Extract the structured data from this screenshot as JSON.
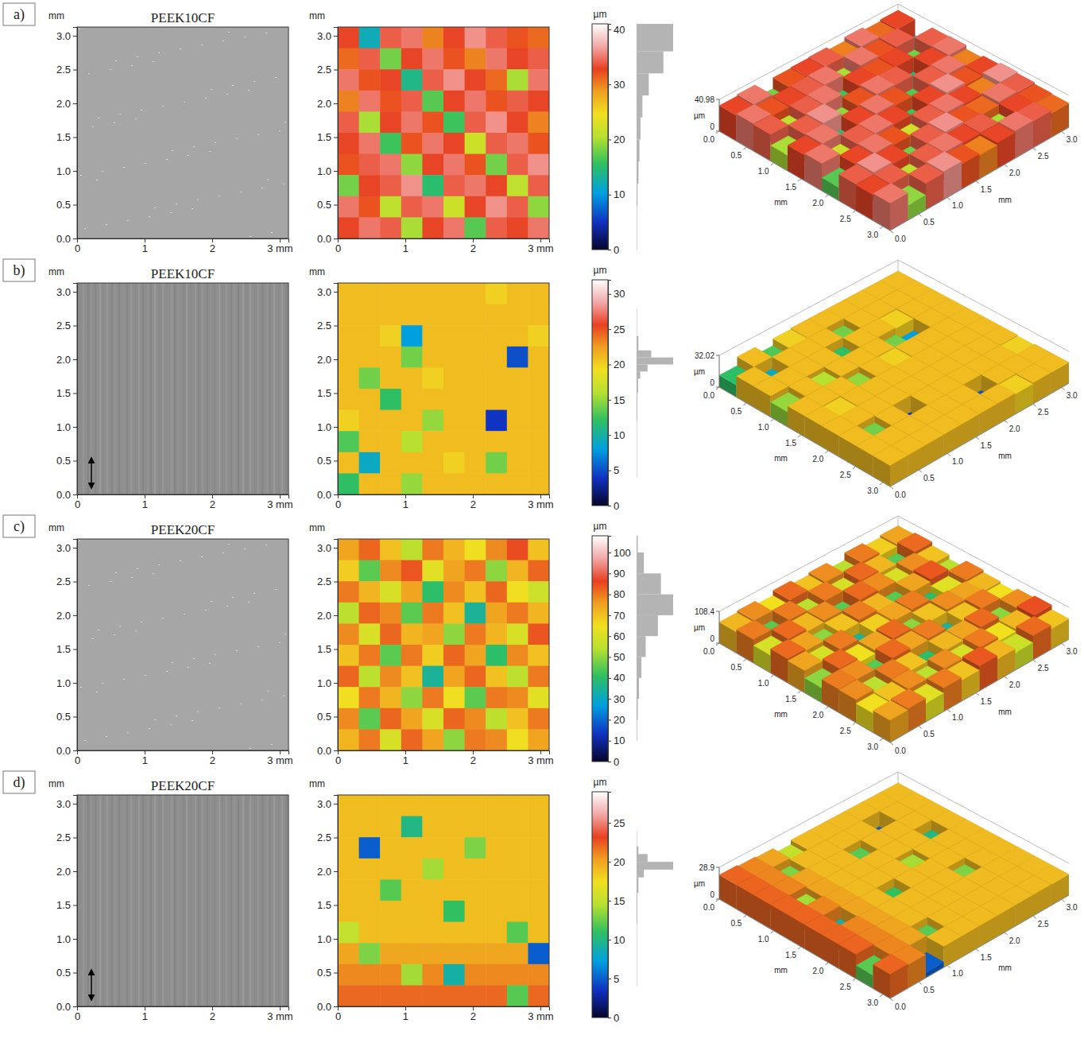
{
  "chart_data": [
    {
      "type": "heatmap",
      "label": "a)",
      "title": "PEEK10CF",
      "ylabel": "mm",
      "xlim": [
        0,
        3.13
      ],
      "ylim": [
        0,
        3.13
      ],
      "xticks": [
        0,
        1,
        2,
        {
          "value": 3,
          "label": "3 mm"
        }
      ],
      "yticks": [
        {
          "value": 0,
          "label": "0.0"
        },
        0.5,
        {
          "value": 1,
          "label": "1.0"
        },
        1.5,
        {
          "value": 2,
          "label": "2.0"
        },
        2.5,
        {
          "value": 3,
          "label": "3.0"
        }
      ],
      "photo": {
        "line_style": "none",
        "marker": "none"
      },
      "cells": [
        [
          33,
          12,
          34,
          35,
          30,
          33,
          36,
          34,
          32,
          31
        ],
        [
          31,
          34,
          18,
          33,
          35,
          32,
          30,
          35,
          33,
          34
        ],
        [
          35,
          32,
          33,
          14,
          34,
          36,
          33,
          31,
          20,
          35
        ],
        [
          30,
          35,
          32,
          34,
          17,
          33,
          35,
          32,
          34,
          33
        ],
        [
          34,
          20,
          33,
          35,
          32,
          16,
          34,
          36,
          33,
          30
        ],
        [
          33,
          35,
          16,
          32,
          35,
          33,
          22,
          34,
          35,
          32
        ],
        [
          32,
          34,
          35,
          19,
          33,
          35,
          32,
          18,
          34,
          36
        ],
        [
          18,
          33,
          34,
          36,
          15,
          34,
          35,
          33,
          21,
          34
        ],
        [
          35,
          32,
          21,
          34,
          35,
          22,
          33,
          36,
          34,
          19
        ],
        [
          33,
          35,
          34,
          20,
          33,
          35,
          17,
          34,
          33,
          35
        ]
      ],
      "colorbar": {
        "label": "µm",
        "zlim": [
          0,
          41
        ],
        "zticks": [
          0,
          10,
          20,
          30,
          40
        ],
        "histogram": {
          "bins": [
            0,
            4,
            8,
            12,
            16,
            20,
            24,
            28,
            32,
            36,
            41
          ],
          "counts": [
            1,
            1,
            2,
            4,
            6,
            8,
            12,
            25,
            55,
            75
          ]
        }
      },
      "surface": {
        "zlabel": "µm",
        "zlim": [
          0,
          40.98
        ],
        "zticks": [
          0,
          40.98
        ],
        "label": "mm",
        "ticks": [
          {
            "value": 0,
            "label": "0.0"
          },
          0.5,
          {
            "value": 1,
            "label": "1.0"
          },
          1.5,
          {
            "value": 2,
            "label": "2.0"
          },
          2.5,
          {
            "value": 3,
            "label": "3.0"
          }
        ]
      }
    },
    {
      "type": "heatmap",
      "label": "b)",
      "title": "PEEK10CF",
      "ylabel": "mm",
      "xlim": [
        0,
        3.13
      ],
      "ylim": [
        0,
        3.13
      ],
      "xticks": [
        0,
        1,
        2,
        {
          "value": 3,
          "label": "3 mm"
        }
      ],
      "yticks": [
        {
          "value": 0,
          "label": "0.0"
        },
        0.5,
        {
          "value": 1,
          "label": "1.0"
        },
        1.5,
        {
          "value": 2,
          "label": "2.0"
        },
        2.5,
        {
          "value": 3,
          "label": "3.0"
        }
      ],
      "photo": {
        "line_style": "striated",
        "marker": "arrow"
      },
      "cells": [
        [
          21,
          21,
          21,
          21,
          21,
          21,
          21,
          20,
          21,
          21
        ],
        [
          21,
          21,
          21,
          21,
          21,
          21,
          21,
          21,
          21,
          21
        ],
        [
          21,
          21,
          20,
          8,
          21,
          21,
          21,
          21,
          21,
          20
        ],
        [
          21,
          21,
          21,
          14,
          21,
          21,
          21,
          21,
          5,
          21
        ],
        [
          21,
          14,
          21,
          21,
          20,
          21,
          21,
          21,
          21,
          21
        ],
        [
          21,
          21,
          12,
          21,
          21,
          21,
          21,
          21,
          21,
          21
        ],
        [
          20,
          21,
          21,
          21,
          15,
          21,
          21,
          4,
          21,
          21
        ],
        [
          13,
          21,
          21,
          16,
          21,
          21,
          21,
          21,
          21,
          21
        ],
        [
          21,
          9,
          21,
          21,
          21,
          20,
          21,
          14,
          21,
          21
        ],
        [
          12,
          21,
          21,
          15,
          21,
          21,
          21,
          21,
          21,
          21
        ]
      ],
      "colorbar": {
        "label": "µm",
        "zlim": [
          0,
          32
        ],
        "zticks": [
          0,
          5,
          10,
          15,
          20,
          25,
          30
        ],
        "histogram": {
          "bins": [
            0,
            4,
            8,
            12,
            16,
            18,
            19,
            20,
            21,
            22,
            24,
            28,
            32
          ],
          "counts": [
            0,
            1,
            1,
            2,
            4,
            10,
            30,
            100,
            40,
            5,
            1,
            0
          ]
        }
      },
      "surface": {
        "zlabel": "µm",
        "zlim": [
          0,
          32.02
        ],
        "zticks": [
          0,
          32.02
        ],
        "label": "mm",
        "ticks": [
          {
            "value": 0,
            "label": "0.0"
          },
          0.5,
          {
            "value": 1,
            "label": "1.0"
          },
          1.5,
          {
            "value": 2,
            "label": "2.0"
          },
          2.5,
          {
            "value": 3,
            "label": "3.0"
          }
        ]
      }
    },
    {
      "type": "heatmap",
      "label": "c)",
      "title": "PEEK20CF",
      "ylabel": "mm",
      "xlim": [
        0,
        3.13
      ],
      "ylim": [
        0,
        3.13
      ],
      "xticks": [
        0,
        1,
        2,
        {
          "value": 3,
          "label": "3 mm"
        }
      ],
      "yticks": [
        {
          "value": 0,
          "label": "0.0"
        },
        0.5,
        {
          "value": 1,
          "label": "1.0"
        },
        1.5,
        {
          "value": 2,
          "label": "2.0"
        },
        2.5,
        {
          "value": 3,
          "label": "3.0"
        }
      ],
      "photo": {
        "line_style": "none",
        "marker": "none"
      },
      "cells": [
        [
          75,
          82,
          70,
          55,
          80,
          72,
          65,
          78,
          85,
          70
        ],
        [
          68,
          45,
          78,
          84,
          62,
          75,
          80,
          50,
          72,
          82
        ],
        [
          80,
          72,
          60,
          75,
          40,
          78,
          70,
          82,
          65,
          58
        ],
        [
          55,
          82,
          78,
          45,
          80,
          70,
          35,
          75,
          80,
          72
        ],
        [
          78,
          60,
          82,
          72,
          75,
          50,
          80,
          72,
          60,
          84
        ],
        [
          70,
          80,
          45,
          80,
          68,
          82,
          75,
          40,
          78,
          70
        ],
        [
          82,
          55,
          78,
          70,
          35,
          75,
          82,
          70,
          55,
          80
        ],
        [
          65,
          80,
          72,
          50,
          80,
          65,
          45,
          80,
          78,
          62
        ],
        [
          78,
          45,
          82,
          75,
          60,
          82,
          78,
          55,
          70,
          80
        ],
        [
          72,
          80,
          60,
          82,
          75,
          50,
          80,
          78,
          65,
          75
        ]
      ],
      "colorbar": {
        "label": "µm",
        "zlim": [
          0,
          108
        ],
        "zticks": [
          0,
          10,
          20,
          30,
          40,
          50,
          60,
          70,
          80,
          90,
          100
        ],
        "histogram": {
          "bins": [
            0,
            10,
            20,
            30,
            40,
            50,
            60,
            70,
            80,
            90,
            100,
            108
          ],
          "counts": [
            0,
            1,
            2,
            4,
            8,
            15,
            35,
            60,
            40,
            12,
            2
          ]
        }
      },
      "surface": {
        "zlabel": "µm",
        "zlim": [
          0,
          108.4
        ],
        "zticks": [
          0,
          108.4
        ],
        "label": "mm",
        "ticks": [
          {
            "value": 0,
            "label": "0.0"
          },
          0.5,
          {
            "value": 1,
            "label": "1.0"
          },
          1.5,
          {
            "value": 2,
            "label": "2.0"
          },
          2.5,
          {
            "value": 3,
            "label": "3.0"
          }
        ]
      }
    },
    {
      "type": "heatmap",
      "label": "d)",
      "title": "PEEK20CF",
      "ylabel": "mm",
      "xlim": [
        0,
        3.13
      ],
      "ylim": [
        0,
        3.13
      ],
      "xticks": [
        0,
        1,
        2,
        {
          "value": 3,
          "label": "3 mm"
        }
      ],
      "yticks": [
        {
          "value": 0,
          "label": "0.0"
        },
        0.5,
        {
          "value": 1,
          "label": "1.0"
        },
        1.5,
        {
          "value": 2,
          "label": "2.0"
        },
        2.5,
        {
          "value": 3,
          "label": "3.0"
        }
      ],
      "photo": {
        "line_style": "striated",
        "marker": "arrow"
      },
      "cells": [
        [
          19,
          19,
          19,
          19,
          19,
          19,
          19,
          19,
          19,
          19
        ],
        [
          19,
          19,
          19,
          10,
          19,
          19,
          19,
          19,
          19,
          19
        ],
        [
          19,
          5,
          19,
          19,
          19,
          19,
          13,
          19,
          19,
          19
        ],
        [
          19,
          19,
          19,
          19,
          14,
          19,
          19,
          19,
          19,
          19
        ],
        [
          19,
          19,
          12,
          19,
          19,
          19,
          19,
          19,
          19,
          19
        ],
        [
          19,
          19,
          19,
          19,
          19,
          11,
          19,
          19,
          19,
          19
        ],
        [
          15,
          19,
          19,
          19,
          19,
          19,
          19,
          19,
          12,
          19
        ],
        [
          20,
          13,
          20,
          20,
          20,
          20,
          20,
          20,
          20,
          5
        ],
        [
          21,
          21,
          21,
          14,
          21,
          9,
          21,
          21,
          21,
          21
        ],
        [
          22,
          22,
          22,
          22,
          22,
          22,
          22,
          22,
          12,
          22
        ]
      ],
      "colorbar": {
        "label": "µm",
        "zlim": [
          0,
          29
        ],
        "zticks": [
          0,
          5,
          10,
          15,
          20,
          25
        ],
        "histogram": {
          "bins": [
            0,
            4,
            8,
            12,
            16,
            18,
            19,
            20,
            21,
            22,
            24,
            29
          ],
          "counts": [
            0,
            1,
            1,
            2,
            5,
            20,
            100,
            30,
            5,
            1,
            0
          ]
        }
      },
      "surface": {
        "zlabel": "µm",
        "zlim": [
          0,
          28.9
        ],
        "zticks": [
          0,
          28.9
        ],
        "label": "mm",
        "ticks": [
          {
            "value": 0,
            "label": "0.0"
          },
          0.5,
          {
            "value": 1,
            "label": "1.0"
          },
          1.5,
          {
            "value": 2,
            "label": "2.0"
          },
          2.5,
          {
            "value": 3,
            "label": "3.0"
          }
        ]
      }
    }
  ]
}
